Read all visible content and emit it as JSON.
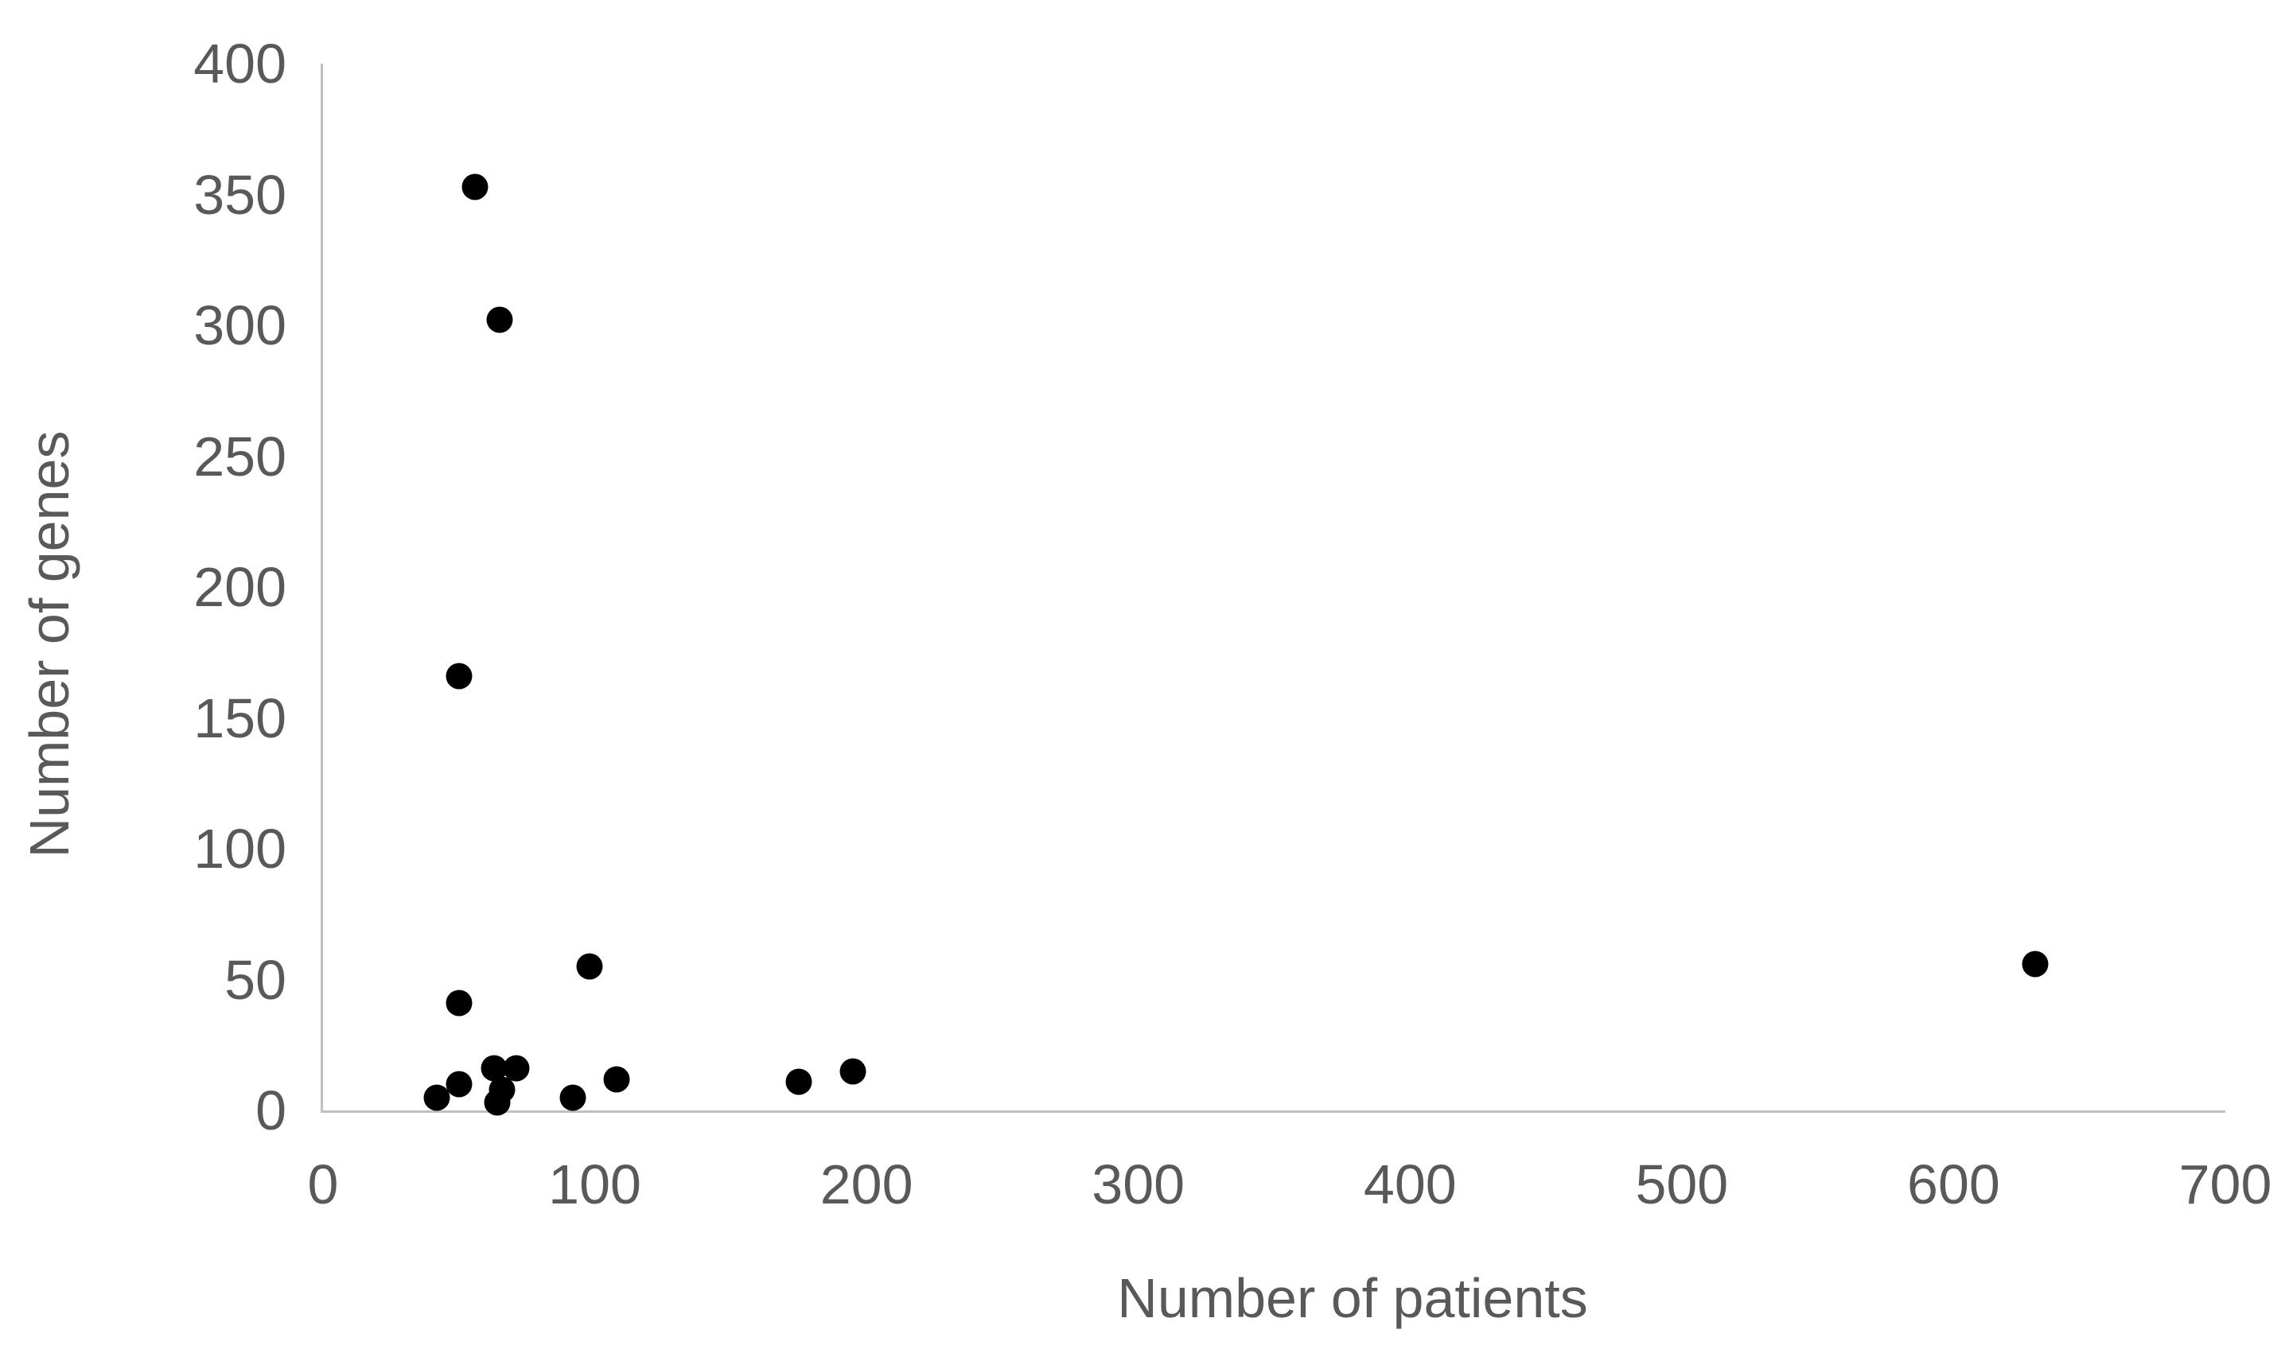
{
  "chart_data": {
    "type": "scatter",
    "title": "",
    "xlabel": "Number of patients",
    "ylabel": "Number of genes",
    "xlim": [
      0,
      700
    ],
    "ylim": [
      0,
      400
    ],
    "x_ticks": [
      0,
      100,
      200,
      300,
      400,
      500,
      600,
      700
    ],
    "y_ticks": [
      0,
      50,
      100,
      150,
      200,
      250,
      300,
      350,
      400
    ],
    "grid": false,
    "legend": false,
    "marker_color": "#000000",
    "axis_line_color": "#BFBFBF",
    "label_color": "#595959",
    "points": [
      {
        "x": 56,
        "y": 353
      },
      {
        "x": 65,
        "y": 302
      },
      {
        "x": 50,
        "y": 166
      },
      {
        "x": 98,
        "y": 55
      },
      {
        "x": 50,
        "y": 41
      },
      {
        "x": 63,
        "y": 16
      },
      {
        "x": 71,
        "y": 16
      },
      {
        "x": 50,
        "y": 10
      },
      {
        "x": 66,
        "y": 8
      },
      {
        "x": 42,
        "y": 5
      },
      {
        "x": 64,
        "y": 3
      },
      {
        "x": 92,
        "y": 5
      },
      {
        "x": 108,
        "y": 12
      },
      {
        "x": 175,
        "y": 11
      },
      {
        "x": 195,
        "y": 15
      },
      {
        "x": 630,
        "y": 56
      }
    ]
  }
}
